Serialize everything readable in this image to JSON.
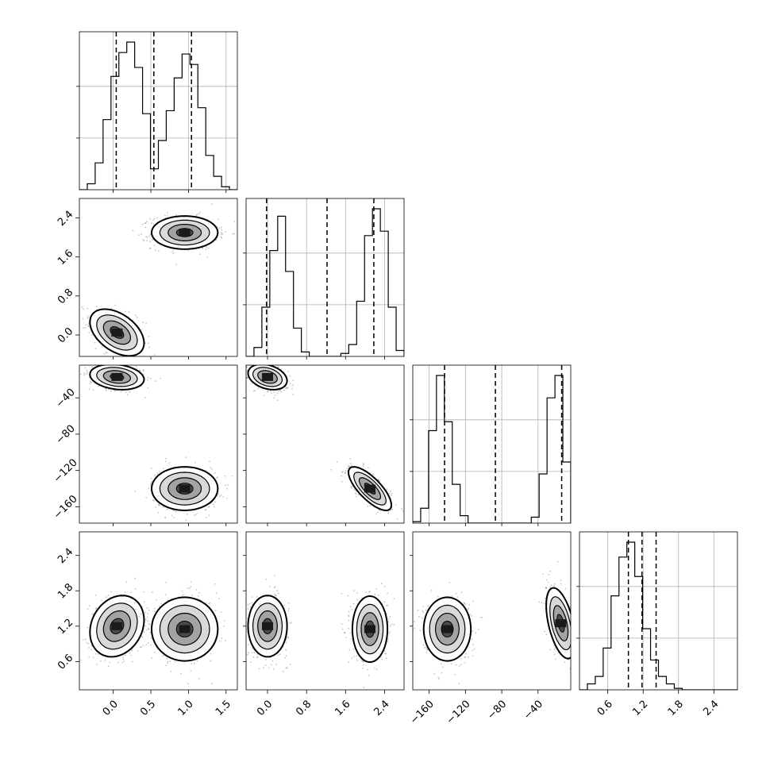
{
  "chart_data": {
    "type": "corner",
    "title": "",
    "parameters": [
      {
        "label": "",
        "range": [
          -0.45,
          1.65
        ],
        "ticks": [
          "0.0",
          "0.5",
          "1.0",
          "1.5"
        ],
        "tick_values": [
          0.0,
          0.5,
          1.0,
          1.5
        ],
        "quantiles": [
          0.04,
          0.54,
          1.04
        ]
      },
      {
        "label": "",
        "range": [
          -0.44,
          2.8
        ],
        "ticks": [
          "0.0",
          "0.8",
          "1.6",
          "2.4"
        ],
        "tick_values": [
          0.0,
          0.8,
          1.6,
          2.4
        ],
        "quantiles": [
          -0.02,
          1.22,
          2.18
        ]
      },
      {
        "label": "",
        "range": [
          -178,
          -4
        ],
        "ticks": [
          "−160",
          "−120",
          "−80",
          "−40"
        ],
        "tick_values": [
          -160,
          -120,
          -80,
          -40
        ],
        "quantiles": [
          -143,
          -87,
          -14
        ]
      },
      {
        "label": "",
        "range": [
          0.12,
          2.8
        ],
        "ticks": [
          "0.6",
          "1.2",
          "1.8",
          "2.4"
        ],
        "tick_values": [
          0.6,
          1.2,
          1.8,
          2.4
        ],
        "quantiles": [
          0.95,
          1.18,
          1.42
        ]
      }
    ],
    "histograms": [
      {
        "param": 0,
        "edges_range": [
          -0.45,
          1.65
        ],
        "bins": 20,
        "counts": [
          0.0,
          0.04,
          0.18,
          0.47,
          0.76,
          0.92,
          0.99,
          0.82,
          0.51,
          0.14,
          0.33,
          0.53,
          0.75,
          0.91,
          0.84,
          0.55,
          0.23,
          0.09,
          0.02,
          0.0
        ]
      },
      {
        "param": 1,
        "edges_range": [
          -0.44,
          2.8
        ],
        "bins": 20,
        "counts": [
          0.0,
          0.06,
          0.33,
          0.71,
          0.94,
          0.57,
          0.19,
          0.03,
          0.0,
          0.0,
          0.0,
          0.0,
          0.02,
          0.08,
          0.37,
          0.81,
          0.99,
          0.84,
          0.33,
          0.04
        ]
      },
      {
        "param": 2,
        "edges_range": [
          -178,
          -4
        ],
        "bins": 20,
        "counts": [
          0.01,
          0.1,
          0.62,
          0.99,
          0.68,
          0.26,
          0.05,
          0.0,
          0.0,
          0.0,
          0.0,
          0.0,
          0.0,
          0.0,
          0.0,
          0.04,
          0.33,
          0.84,
          0.99,
          0.41
        ]
      },
      {
        "param": 3,
        "edges_range": [
          0.12,
          2.8
        ],
        "bins": 20,
        "counts": [
          0.0,
          0.04,
          0.09,
          0.28,
          0.63,
          0.89,
          0.99,
          0.76,
          0.41,
          0.2,
          0.09,
          0.04,
          0.01,
          0.0,
          0.0,
          0.0,
          0.0,
          0.0,
          0.0,
          0.0
        ]
      }
    ],
    "pairs": [
      {
        "x": 0,
        "y": 1,
        "modes": [
          {
            "mx": 0.05,
            "my": 0.05,
            "sx": 0.18,
            "sy": 0.24,
            "rho": -0.45
          },
          {
            "mx": 0.95,
            "my": 2.1,
            "sx": 0.22,
            "sy": 0.17,
            "rho": 0.0
          }
        ]
      },
      {
        "x": 0,
        "y": 2,
        "modes": [
          {
            "mx": 0.05,
            "my": -17,
            "sx": 0.18,
            "sy": 7,
            "rho": -0.2
          },
          {
            "mx": 0.95,
            "my": -140,
            "sx": 0.22,
            "sy": 12,
            "rho": 0.0
          }
        ]
      },
      {
        "x": 0,
        "y": 3,
        "modes": [
          {
            "mx": 0.05,
            "my": 1.2,
            "sx": 0.18,
            "sy": 0.26,
            "rho": 0.2
          },
          {
            "mx": 0.95,
            "my": 1.15,
            "sx": 0.22,
            "sy": 0.27,
            "rho": 0.0
          }
        ]
      },
      {
        "x": 1,
        "y": 2,
        "modes": [
          {
            "mx": 0.0,
            "my": -17,
            "sx": 0.2,
            "sy": 7,
            "rho": -0.3
          },
          {
            "mx": 2.1,
            "my": -140,
            "sx": 0.22,
            "sy": 12,
            "rho": -0.75
          }
        ]
      },
      {
        "x": 1,
        "y": 3,
        "modes": [
          {
            "mx": 0.0,
            "my": 1.2,
            "sx": 0.2,
            "sy": 0.26,
            "rho": 0.0
          },
          {
            "mx": 2.1,
            "my": 1.15,
            "sx": 0.18,
            "sy": 0.28,
            "rho": 0.0
          }
        ]
      },
      {
        "x": 2,
        "y": 3,
        "modes": [
          {
            "mx": -140,
            "my": 1.15,
            "sx": 13,
            "sy": 0.27,
            "rho": 0.0
          },
          {
            "mx": -15,
            "my": 1.25,
            "sx": 8,
            "sy": 0.3,
            "rho": -0.5
          }
        ]
      }
    ],
    "grid": true,
    "colors": {
      "line": "#000000",
      "grid": "#b0b0b0",
      "points": "#555555",
      "fill_dark": "#1a1a1a",
      "fill_light": "#d8d8d8"
    }
  }
}
